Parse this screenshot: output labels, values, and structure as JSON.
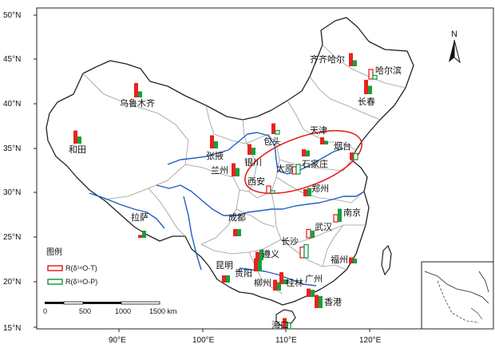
{
  "lat_labels": [
    "50°N",
    "45°N",
    "40°N",
    "35°N",
    "30°N",
    "25°N",
    "20°N",
    "15°N"
  ],
  "lon_labels": [
    "90°E",
    "100°E",
    "110°E",
    "120°E"
  ],
  "cities": [
    {
      "id": "qiqihar",
      "name": "齐齐哈尔",
      "red": 0.55,
      "green": 0.25,
      "red_style": "filled",
      "green_style": "filled"
    },
    {
      "id": "harbin",
      "name": "哈尔滨",
      "red": 0.4,
      "green": 0.15,
      "red_style": "hollow",
      "green_style": "hollow"
    },
    {
      "id": "changchun",
      "name": "长春",
      "red": 0.6,
      "green": 0.35,
      "red_style": "filled",
      "green_style": "filled"
    },
    {
      "id": "urumqi",
      "name": "乌鲁木齐",
      "red": 0.6,
      "green": 0.25,
      "red_style": "filled",
      "green_style": "filled"
    },
    {
      "id": "hotan",
      "name": "和田",
      "red": 0.55,
      "green": 0.3,
      "red_style": "filled",
      "green_style": "filled"
    },
    {
      "id": "baotou",
      "name": "包头",
      "red": 0.45,
      "green": 0.15,
      "red_style": "filled",
      "green_style": "hollow"
    },
    {
      "id": "tianjin",
      "name": "天津",
      "red": 0.3,
      "green": 0.15,
      "red_style": "filled",
      "green_style": "filled"
    },
    {
      "id": "yantai",
      "name": "烟台",
      "red": 0.3,
      "green": 0.25,
      "red_style": "filled",
      "green_style": "hollow"
    },
    {
      "id": "zhangye",
      "name": "张掖",
      "red": 0.55,
      "green": 0.3,
      "red_style": "filled",
      "green_style": "filled"
    },
    {
      "id": "yinchuan",
      "name": "银川",
      "red": 0.45,
      "green": 0.3,
      "red_style": "filled",
      "green_style": "filled"
    },
    {
      "id": "shijiazhuang",
      "name": "石家庄",
      "red": 0.3,
      "green": 0.25,
      "red_style": "filled",
      "green_style": "filled"
    },
    {
      "id": "taiyuan",
      "name": "太原",
      "red": 0.3,
      "green": 0.4,
      "red_style": "hollow",
      "green_style": "hollow"
    },
    {
      "id": "lanzhou",
      "name": "兰州",
      "red": 0.55,
      "green": 0.35,
      "red_style": "filled",
      "green_style": "filled"
    },
    {
      "id": "xian",
      "name": "西安",
      "red": 0.3,
      "green": 0.1,
      "red_style": "hollow",
      "green_style": "hollow"
    },
    {
      "id": "zhengzhou",
      "name": "郑州",
      "red": 0.3,
      "green": 0.35,
      "red_style": "filled",
      "green_style": "filled"
    },
    {
      "id": "nanjing",
      "name": "南京",
      "red": 0.3,
      "green": 0.55,
      "red_style": "hollow",
      "green_style": "filled"
    },
    {
      "id": "lhasa",
      "name": "拉萨",
      "red": 0.12,
      "green": 0.3,
      "red_style": "filled",
      "green_style": "filled"
    },
    {
      "id": "chengdu",
      "name": "成都",
      "red": 0.3,
      "green": 0.3,
      "red_style": "filled",
      "green_style": "filled"
    },
    {
      "id": "wuhan",
      "name": "武汉",
      "red": 0.35,
      "green": 0.3,
      "red_style": "hollow",
      "green_style": "filled"
    },
    {
      "id": "changsha",
      "name": "长沙",
      "red": 0.45,
      "green": 0.55,
      "red_style": "hollow",
      "green_style": "hollow"
    },
    {
      "id": "kunming",
      "name": "昆明",
      "red": 0.3,
      "green": 0.3,
      "red_style": "filled",
      "green_style": "filled"
    },
    {
      "id": "guiyang",
      "name": "贵阳",
      "red": 0.55,
      "green": 0.5,
      "red_style": "filled",
      "green_style": "filled"
    },
    {
      "id": "zunyi",
      "name": "遵义",
      "red": 0.35,
      "green": 0.45,
      "red_style": "filled",
      "green_style": "filled"
    },
    {
      "id": "fuzhou",
      "name": "福州",
      "red": 0.25,
      "green": 0.2,
      "red_style": "filled",
      "green_style": "filled"
    },
    {
      "id": "liuzhou",
      "name": "柳州",
      "red": 0.45,
      "green": 0.35,
      "red_style": "filled",
      "green_style": "filled"
    },
    {
      "id": "guilin",
      "name": "桂林",
      "red": 0.5,
      "green": 0.2,
      "red_style": "filled",
      "green_style": "filled"
    },
    {
      "id": "guangzhou",
      "name": "广州",
      "red": 0.35,
      "green": 0.3,
      "red_style": "filled",
      "green_style": "filled"
    },
    {
      "id": "hongkong",
      "name": "香港",
      "red": 0.55,
      "green": 0.5,
      "red_style": "filled",
      "green_style": "filled"
    },
    {
      "id": "haikou",
      "name": "海口",
      "red": 0.45,
      "green": 0.25,
      "red_style": "filled",
      "green_style": "hollow"
    }
  ],
  "legend": {
    "title": "图例",
    "red_label": "R(δ¹⁸O-T)",
    "green_label": "R(δ¹⁸O-P)"
  },
  "scalebar": {
    "ticks": [
      "0",
      "500",
      "1000",
      "1500 km"
    ]
  },
  "north": "N",
  "colors": {
    "red": "#e8231f",
    "green": "#1a9e3e",
    "boundary": "#222222",
    "province": "#9a9a9a",
    "river": "#1f5fc4",
    "ellipse": "#e8231f"
  }
}
